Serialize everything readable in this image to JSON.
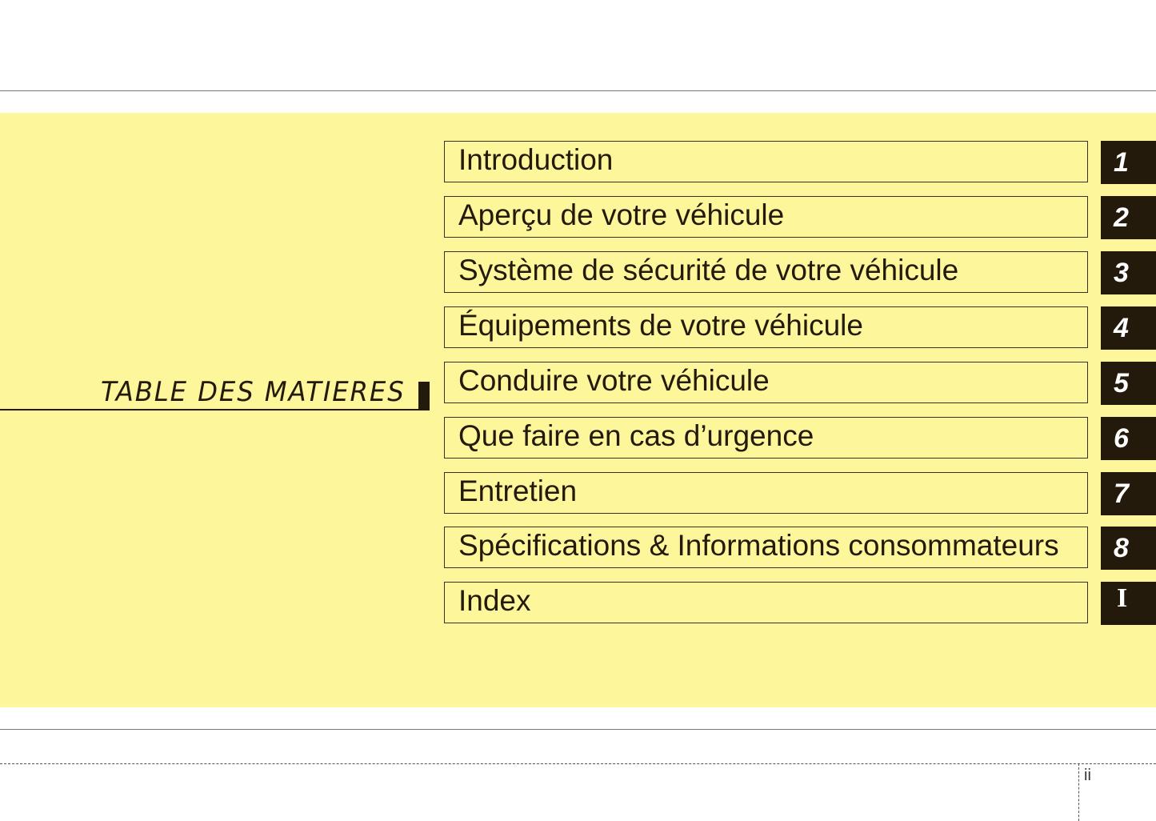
{
  "title": "TABLE DES MATIERES",
  "entries": [
    {
      "label": "Introduction",
      "number": "1"
    },
    {
      "label": "Aperçu de votre véhicule",
      "number": "2"
    },
    {
      "label": "Système de sécurité de votre véhicule",
      "number": "3"
    },
    {
      "label": "Équipements de votre véhicule",
      "number": "4"
    },
    {
      "label": "Conduire votre véhicule",
      "number": "5"
    },
    {
      "label": "Que faire en cas d’urgence",
      "number": "6"
    },
    {
      "label": "Entretien",
      "number": "7"
    },
    {
      "label": "Spécifications & Informations consommateurs",
      "number": "8"
    },
    {
      "label": "Index",
      "number": "I"
    }
  ],
  "page_number": "ii",
  "colors": {
    "band": "#fdf69a",
    "ink": "#231a0c"
  }
}
